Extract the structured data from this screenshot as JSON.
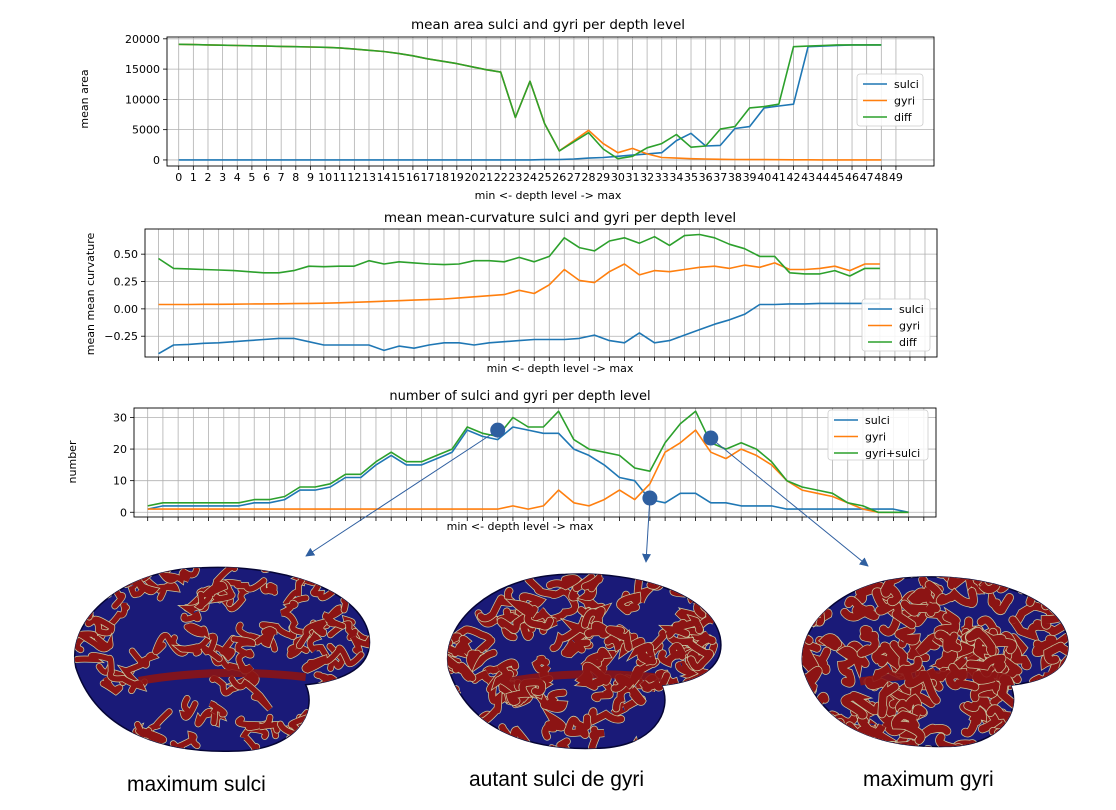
{
  "colors": {
    "sulci": "#1f77b4",
    "gyri": "#ff7f0e",
    "diff": "#2ca02c",
    "brain_blue": "#1a1a78",
    "brain_red": "#8c1414",
    "marker": "#2f5fa0"
  },
  "chart_data": [
    {
      "type": "line",
      "title": "mean area sulci and gyri per depth level",
      "xlabel": "min <- depth level -> max",
      "ylabel": "mean area",
      "xticks": [
        "0",
        "1",
        "2",
        "3",
        "4",
        "5",
        "6",
        "7",
        "8",
        "9",
        "10",
        "11",
        "12",
        "13",
        "14",
        "15",
        "16",
        "17",
        "18",
        "19",
        "20",
        "21",
        "22",
        "23",
        "24",
        "25",
        "26",
        "27",
        "28",
        "29",
        "30",
        "31",
        "32",
        "33",
        "34",
        "35",
        "36",
        "37",
        "38",
        "39",
        "40",
        "41",
        "42",
        "43",
        "44",
        "45",
        "46",
        "47",
        "48",
        "49"
      ],
      "yticks": [
        "0",
        "5000",
        "10000",
        "15000",
        "20000"
      ],
      "xlim": [
        -0.8,
        51.6
      ],
      "ylim": [
        -1000,
        20300
      ],
      "grid": true,
      "legend": "right",
      "x": [
        0,
        1,
        2,
        3,
        4,
        5,
        6,
        7,
        8,
        9,
        10,
        11,
        12,
        13,
        14,
        15,
        16,
        17,
        18,
        19,
        20,
        21,
        22,
        23,
        24,
        25,
        26,
        27,
        28,
        29,
        30,
        31,
        32,
        33,
        34,
        35,
        36,
        37,
        38,
        39,
        40,
        41,
        42,
        43,
        44,
        45,
        46,
        47,
        48
      ],
      "series": [
        {
          "name": "sulci",
          "color_key": "sulci",
          "values": [
            0,
            0,
            0,
            0,
            0,
            0,
            0,
            0,
            0,
            0,
            0,
            0,
            0,
            0,
            0,
            0,
            0,
            0,
            0,
            0,
            0,
            0,
            0,
            0,
            0,
            50,
            80,
            150,
            300,
            400,
            600,
            800,
            1000,
            1200,
            3200,
            4400,
            2300,
            2400,
            5200,
            5500,
            8600,
            8900,
            9200,
            18700,
            18800,
            18900,
            19000,
            19000,
            19000
          ]
        },
        {
          "name": "gyri",
          "color_key": "gyri",
          "values": [
            19100,
            19050,
            19000,
            18950,
            18900,
            18850,
            18800,
            18750,
            18700,
            18650,
            18600,
            18500,
            18300,
            18100,
            17900,
            17600,
            17200,
            16700,
            16300,
            15900,
            15400,
            14900,
            14500,
            7000,
            13000,
            6000,
            1500,
            3200,
            4900,
            2700,
            1200,
            1900,
            1000,
            400,
            300,
            200,
            150,
            100,
            80,
            60,
            50,
            40,
            30,
            20,
            10,
            5,
            0,
            0,
            0
          ]
        },
        {
          "name": "diff",
          "color_key": "diff",
          "values": [
            19100,
            19050,
            19000,
            18950,
            18900,
            18850,
            18800,
            18750,
            18700,
            18650,
            18600,
            18500,
            18300,
            18100,
            17900,
            17600,
            17200,
            16700,
            16300,
            15900,
            15400,
            14900,
            14500,
            7000,
            13000,
            6000,
            1500,
            3000,
            4500,
            1800,
            200,
            600,
            2000,
            2700,
            4200,
            2100,
            2300,
            5100,
            5500,
            8600,
            8800,
            9200,
            18700,
            18800,
            18900,
            19000,
            19000,
            19000,
            19000
          ]
        }
      ]
    },
    {
      "type": "line",
      "title": "mean mean-curvature sulci and gyri per depth level",
      "xlabel": "min <- depth level -> max",
      "ylabel": "mean mean curvature",
      "yticks": [
        "0.50",
        "0.25",
        "0.00",
        "−0.25"
      ],
      "ytick_values": [
        0.5,
        0.25,
        0,
        -0.25
      ],
      "xlim": [
        -0.9,
        51.8
      ],
      "ylim": [
        -0.44,
        0.73
      ],
      "grid": true,
      "legend": "right",
      "x": [
        0,
        1,
        2,
        3,
        4,
        5,
        6,
        7,
        8,
        9,
        10,
        11,
        12,
        13,
        14,
        15,
        16,
        17,
        18,
        19,
        20,
        21,
        22,
        23,
        24,
        25,
        26,
        27,
        28,
        29,
        30,
        31,
        32,
        33,
        34,
        35,
        36,
        37,
        38,
        39,
        40,
        41,
        42,
        43,
        44,
        45,
        46,
        47,
        48
      ],
      "series": [
        {
          "name": "sulci",
          "color_key": "sulci",
          "values": [
            -0.41,
            -0.33,
            -0.325,
            -0.315,
            -0.31,
            -0.3,
            -0.29,
            -0.28,
            -0.27,
            -0.27,
            -0.3,
            -0.33,
            -0.33,
            -0.33,
            -0.33,
            -0.38,
            -0.34,
            -0.36,
            -0.33,
            -0.31,
            -0.31,
            -0.33,
            -0.31,
            -0.3,
            -0.29,
            -0.28,
            -0.28,
            -0.28,
            -0.27,
            -0.24,
            -0.29,
            -0.31,
            -0.22,
            -0.31,
            -0.29,
            -0.24,
            -0.19,
            -0.14,
            -0.1,
            -0.05,
            0.04,
            0.04,
            0.045,
            0.045,
            0.05,
            0.05,
            0.05,
            0.05,
            0.05
          ]
        },
        {
          "name": "gyri",
          "color_key": "gyri",
          "values": [
            0.04,
            0.04,
            0.04,
            0.042,
            0.042,
            0.043,
            0.044,
            0.045,
            0.046,
            0.048,
            0.05,
            0.052,
            0.055,
            0.06,
            0.065,
            0.07,
            0.075,
            0.08,
            0.085,
            0.09,
            0.1,
            0.11,
            0.12,
            0.13,
            0.17,
            0.14,
            0.22,
            0.36,
            0.26,
            0.24,
            0.34,
            0.41,
            0.31,
            0.35,
            0.34,
            0.36,
            0.38,
            0.39,
            0.37,
            0.4,
            0.38,
            0.42,
            0.36,
            0.36,
            0.37,
            0.39,
            0.35,
            0.41,
            0.41
          ]
        },
        {
          "name": "diff",
          "color_key": "diff",
          "values": [
            0.46,
            0.37,
            0.365,
            0.36,
            0.355,
            0.35,
            0.34,
            0.33,
            0.33,
            0.35,
            0.39,
            0.385,
            0.39,
            0.39,
            0.44,
            0.41,
            0.43,
            0.42,
            0.41,
            0.405,
            0.41,
            0.44,
            0.44,
            0.43,
            0.47,
            0.43,
            0.48,
            0.65,
            0.56,
            0.53,
            0.62,
            0.65,
            0.6,
            0.66,
            0.58,
            0.67,
            0.68,
            0.65,
            0.59,
            0.55,
            0.48,
            0.48,
            0.33,
            0.32,
            0.32,
            0.35,
            0.3,
            0.37,
            0.37
          ]
        }
      ]
    },
    {
      "type": "line",
      "title": "number of sulci and gyri per depth level",
      "xlabel": "min <- depth level -> max",
      "ylabel": "number",
      "yticks": [
        "0",
        "10",
        "20",
        "30"
      ],
      "ytick_values": [
        0,
        10,
        20,
        30
      ],
      "xlim": [
        -0.9,
        51.8
      ],
      "ylim": [
        -1.5,
        33
      ],
      "grid": true,
      "legend": "top-right",
      "x": [
        0,
        1,
        2,
        3,
        4,
        5,
        6,
        7,
        8,
        9,
        10,
        11,
        12,
        13,
        14,
        15,
        16,
        17,
        18,
        19,
        20,
        21,
        22,
        23,
        24,
        25,
        26,
        27,
        28,
        29,
        30,
        31,
        32,
        33,
        34,
        35,
        36,
        37,
        38,
        39,
        40,
        41,
        42,
        43,
        44,
        45,
        46,
        47,
        48,
        49,
        50
      ],
      "series": [
        {
          "name": "sulci",
          "color_key": "sulci",
          "values": [
            1,
            2,
            2,
            2,
            2,
            2,
            2,
            3,
            3,
            4,
            7,
            7,
            8,
            11,
            11,
            15,
            18,
            15,
            15,
            17,
            19,
            26,
            24,
            23,
            27,
            26,
            25,
            25,
            20,
            18,
            15,
            11,
            10,
            4,
            3,
            6,
            6,
            3,
            3,
            2,
            2,
            2,
            1,
            1,
            1,
            1,
            1,
            1,
            1,
            1,
            0
          ]
        },
        {
          "name": "gyri",
          "color_key": "gyri",
          "values": [
            1,
            1,
            1,
            1,
            1,
            1,
            1,
            1,
            1,
            1,
            1,
            1,
            1,
            1,
            1,
            1,
            1,
            1,
            1,
            1,
            1,
            1,
            1,
            1,
            2,
            1,
            2,
            7,
            3,
            2,
            4,
            7,
            4,
            9,
            19,
            22,
            26,
            19,
            17,
            20,
            18,
            15,
            10,
            7,
            6,
            5,
            3,
            1,
            0,
            0,
            0
          ]
        },
        {
          "name": "gyri+sulci",
          "color_key": "diff",
          "values": [
            2,
            3,
            3,
            3,
            3,
            3,
            3,
            4,
            4,
            5,
            8,
            8,
            9,
            12,
            12,
            16,
            19,
            16,
            16,
            18,
            20,
            27,
            25,
            24,
            30,
            27,
            27,
            32,
            23,
            20,
            19,
            18,
            14,
            13,
            22,
            28,
            32,
            22,
            20,
            22,
            20,
            16,
            10,
            8,
            7,
            6,
            3,
            2,
            0,
            0,
            0
          ]
        }
      ],
      "annotations": [
        {
          "x": 23,
          "y": 26
        },
        {
          "x": 33,
          "y": 4.5
        },
        {
          "x": 37,
          "y": 23.5
        }
      ]
    }
  ],
  "captions": {
    "left": "maximum sulci",
    "middle": "autant sulci de gyri",
    "right": "maximum gyri"
  }
}
